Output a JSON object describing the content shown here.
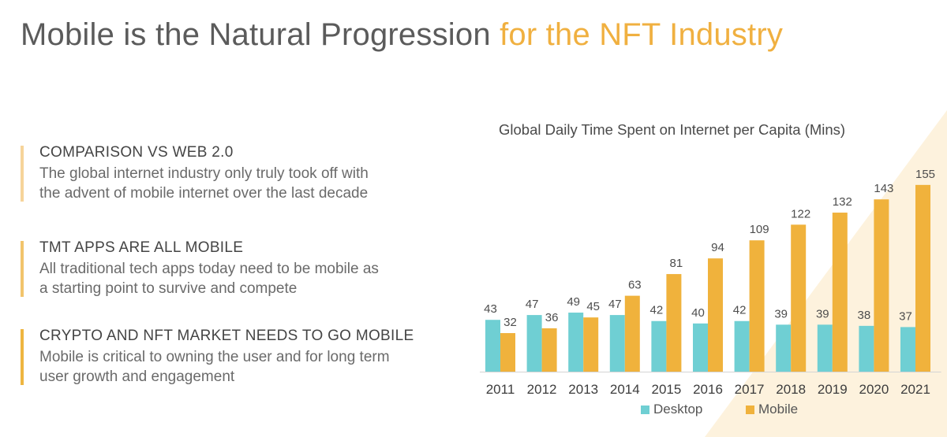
{
  "page": {
    "title_part1": "Mobile is the Natural Progression",
    "title_part2": "for the NFT Industry"
  },
  "points": [
    {
      "heading": "COMPARISON VS WEB 2.0",
      "line1": "The global internet industry only truly took off with",
      "line2": "the advent of mobile internet over the last decade",
      "accent": "#f6d49a"
    },
    {
      "heading": "TMT APPS ARE ALL MOBILE",
      "line1": "All traditional tech apps today need to be mobile as",
      "line2": "a starting point to survive and compete",
      "accent": "#f2c46c"
    },
    {
      "heading": "CRYPTO AND NFT MARKET NEEDS TO GO MOBILE",
      "line1": "Mobile is critical to owning the user and for long term",
      "line2": "user growth and engagement",
      "accent": "#eeb540"
    }
  ],
  "colors": {
    "desktop": "#6fcfd3",
    "mobile": "#f0b23c",
    "title_accent": "#f0b040",
    "background_triangle": "#fdf2dd"
  },
  "chart_data": {
    "type": "bar",
    "title": "Global Daily Time Spent on Internet per Capita (Mins)",
    "categories": [
      "2011",
      "2012",
      "2013",
      "2014",
      "2015",
      "2016",
      "2017",
      "2018",
      "2019",
      "2020",
      "2021"
    ],
    "series": [
      {
        "name": "Desktop",
        "values": [
          43,
          47,
          49,
          47,
          42,
          40,
          42,
          39,
          39,
          38,
          37
        ]
      },
      {
        "name": "Mobile",
        "values": [
          32,
          36,
          45,
          63,
          81,
          94,
          109,
          122,
          132,
          143,
          155
        ]
      }
    ],
    "ylim": [
      0,
      160
    ],
    "grid": false,
    "legend": "bottom"
  }
}
